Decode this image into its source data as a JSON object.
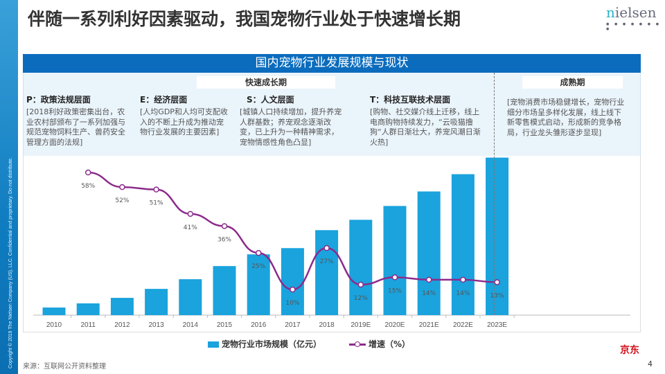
{
  "title": "伴随一系列利好因素驱动，我国宠物行业处于快速增长期",
  "logo": {
    "first": "n",
    "rest": "ielsen",
    "dots": "● ● ● ● ● ● ● ●"
  },
  "copyright": "Copyright © 2019 The Nielsen Company (US), LLC. Confidential and proprietary. Do not distribute.",
  "band_title": "国内宠物行业发展规模与现状",
  "phases": {
    "growth": "快速成长期",
    "mature": "成熟期"
  },
  "columns": [
    {
      "head": "P：政策法规层面",
      "body": "[2018利好政策密集出台，农业农村部颁布了一系列加强与规范宠物饲料生产、兽药安全管理方面的法规]"
    },
    {
      "head": "E：经济层面",
      "body": "[人均GDP和人均可支配收入的不断上升成为推动宠物行业发展的主要因素]"
    },
    {
      "head": "S：人文层面",
      "body": "[城镇人口持续增加，提升养宠人群基数；养宠观念逐渐改变，已上升为一种精神需求，宠物情感性角色凸显]"
    },
    {
      "head": "T：科技互联技术层面",
      "body": "[购物、社交媒介线上迁移，线上电商购物持续发力，“云吸猫撸狗“人群日渐壮大，养宠风潮日渐火热]"
    },
    {
      "head": "",
      "body": "[宠物消费市场稳健增长，宠物行业细分市场呈多样化发展，线上线下新零售模式启动，形成新的竞争格局，行业龙头雏形逐步显现]"
    }
  ],
  "chart_data": {
    "type": "bar+line",
    "categories": [
      "2010",
      "2011",
      "2012",
      "2013",
      "2014",
      "2015",
      "2016",
      "2017",
      "2018",
      "2019E",
      "2020E",
      "2021E",
      "2022E",
      "2023E"
    ],
    "series": [
      {
        "name": "宠物行业市场规模（亿元）",
        "type": "bar",
        "values": [
          154,
          238,
          350,
          532,
          728,
          994,
          1232,
          1358,
          1722,
          1932,
          2212,
          2506,
          2856,
          3192
        ],
        "color": "#1aa3dd"
      },
      {
        "name": "增速（%）",
        "type": "line",
        "values": [
          null,
          58,
          52,
          51,
          41,
          36,
          25,
          10,
          27,
          12,
          15,
          14,
          14,
          13
        ],
        "labels": [
          "",
          "58%",
          "52%",
          "51%",
          "41%",
          "36%",
          "25%",
          "10%",
          "27%",
          "12%",
          "15%",
          "14%",
          "14%",
          "13%"
        ],
        "color": "#8c2a8c"
      }
    ],
    "ylim_bar": [
      0,
      3200
    ],
    "ylim_line": [
      0,
      70
    ],
    "legend": "bottom"
  },
  "source": "来源：互联网公开资料整理",
  "watermark": "京东",
  "page_number": "4"
}
